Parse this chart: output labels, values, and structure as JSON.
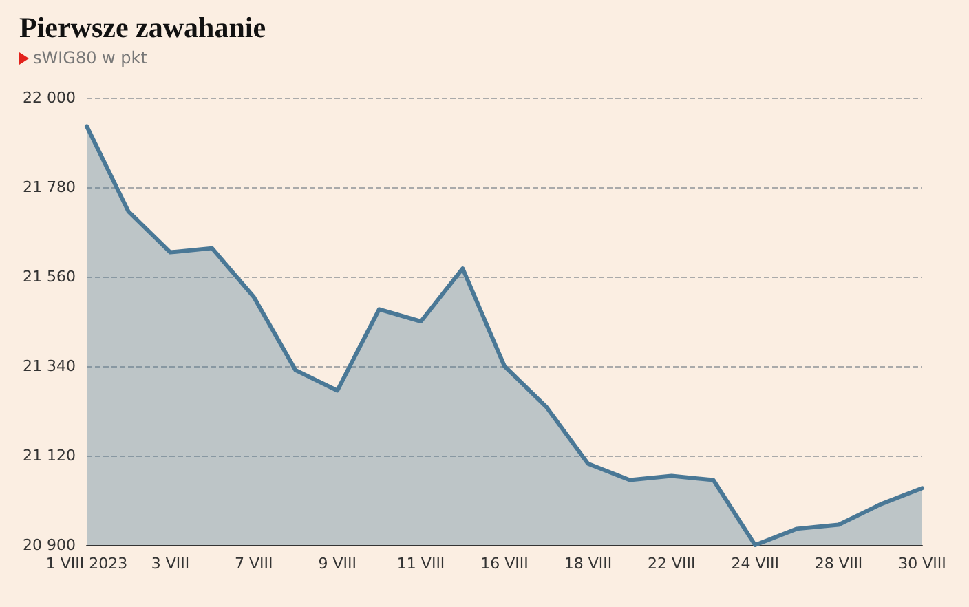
{
  "chart_data": {
    "type": "area",
    "title": "Pierwsze zawahanie",
    "subtitle": "sWIG80 w pkt",
    "categories": [
      "1 VIII 2023",
      null,
      "3 VIII",
      null,
      "7 VIII",
      null,
      "9 VIII",
      null,
      "11 VIII",
      null,
      "16 VIII",
      null,
      "18 VIII",
      null,
      "22 VIII",
      null,
      "24 VIII",
      null,
      "28 VIII",
      null,
      "30 VIII"
    ],
    "values": [
      21930,
      21720,
      21620,
      21630,
      21510,
      21330,
      21280,
      21480,
      21450,
      21580,
      21340,
      21240,
      21100,
      21060,
      21070,
      21060,
      20900,
      20940,
      20950,
      21000,
      21040
    ],
    "color": "#4a7896",
    "ylim": [
      20900,
      22000
    ],
    "yticks": [
      {
        "value": 20900,
        "label": "20 900"
      },
      {
        "value": 21120,
        "label": "21 120"
      },
      {
        "value": 21340,
        "label": "21 340"
      },
      {
        "value": 21560,
        "label": "21 560"
      },
      {
        "value": 21780,
        "label": "21 780"
      },
      {
        "value": 22000,
        "label": "22 000"
      }
    ],
    "grid": "y",
    "marker": "none",
    "line_style": "solid"
  }
}
